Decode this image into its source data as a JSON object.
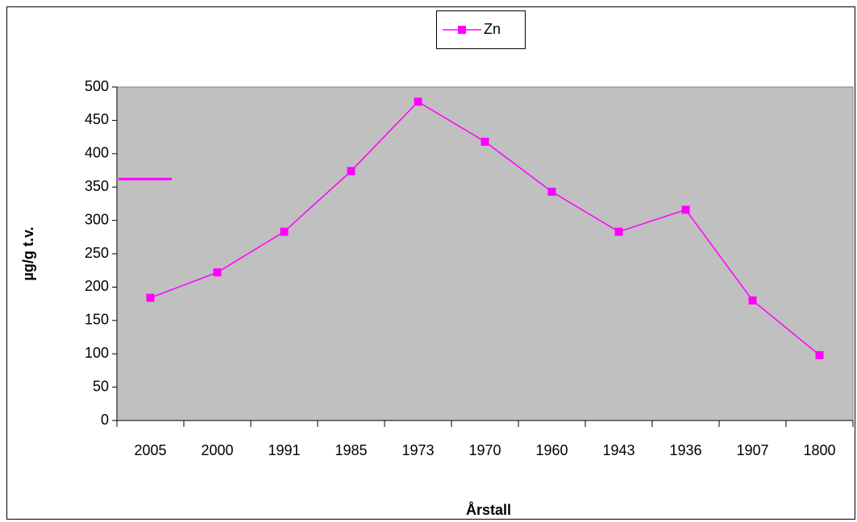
{
  "chart_data": {
    "type": "line",
    "y_label": "µg/g t.v.",
    "x_label": "Årstall",
    "categories": [
      "2005",
      "2000",
      "1991",
      "1985",
      "1973",
      "1970",
      "1960",
      "1943",
      "1936",
      "1907",
      "1800"
    ],
    "series": [
      {
        "name": "Zn",
        "color": "#ff00ff",
        "values": [
          184,
          222,
          283,
          374,
          478,
          418,
          343,
          283,
          316,
          180,
          98
        ]
      }
    ],
    "reference_line": {
      "value": 362,
      "color": "#ff00ff"
    },
    "ylim": [
      0,
      500
    ],
    "yticks": [
      0,
      50,
      100,
      150,
      200,
      250,
      300,
      350,
      400,
      450,
      500
    ],
    "grid": false,
    "legend": "top",
    "plot_background": "#c0c0c0"
  }
}
